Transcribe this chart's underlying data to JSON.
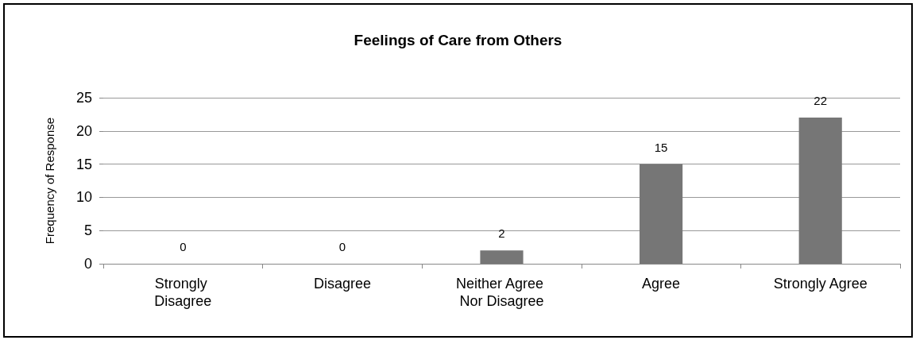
{
  "chart_data": {
    "type": "bar",
    "title": "Feelings of Care from Others",
    "ylabel": "Frequency of Response",
    "categories": [
      "Strongly Disagree",
      "Disagree",
      "Neither Agree Nor Disagree",
      "Agree",
      "Strongly Agree"
    ],
    "values": [
      0,
      0,
      2,
      15,
      22
    ],
    "color": "#767676",
    "ylim": [
      0,
      25
    ],
    "yticks": [
      0,
      5,
      10,
      15,
      20,
      25
    ],
    "grid": "y",
    "data_labels": true
  }
}
